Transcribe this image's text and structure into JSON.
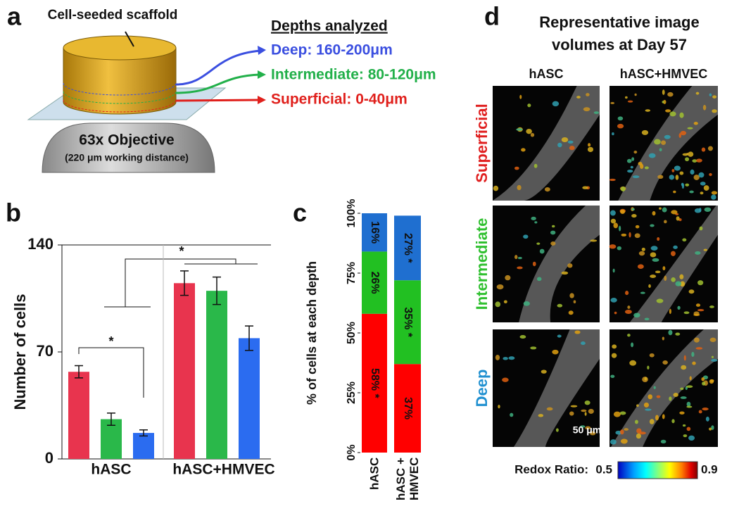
{
  "panel_a": {
    "label": "a",
    "scaffold_label": "Cell-seeded scaffold",
    "depths_title": "Depths analyzed",
    "depths": [
      {
        "text": "Deep: 160-200μm",
        "color": "#3b4fe0"
      },
      {
        "text": "Intermediate: 80-120μm",
        "color": "#22b04a"
      },
      {
        "text": "Superficial: 0-40μm",
        "color": "#e0201c"
      }
    ],
    "objective": "63x Objective",
    "objective_note": "(220 μm working distance)"
  },
  "chart_data": [
    {
      "type": "bar",
      "panel_label": "b",
      "ylabel": "Number of cells",
      "categories": [
        "hASC",
        "hASC+HMVEC"
      ],
      "series": [
        {
          "color": "#e8344e",
          "values": [
            57,
            115
          ],
          "errors": [
            4,
            8
          ]
        },
        {
          "color": "#2ab84a",
          "values": [
            26,
            110
          ],
          "errors": [
            4,
            9
          ]
        },
        {
          "color": "#2b6cf0",
          "values": [
            17,
            79
          ],
          "errors": [
            2,
            8
          ]
        }
      ],
      "ylim": [
        0,
        140
      ],
      "yticks": [
        0,
        70,
        140
      ],
      "annotations": [
        "*",
        "*"
      ]
    },
    {
      "type": "stacked_bar",
      "panel_label": "c",
      "ylabel": "% of cells at each depth",
      "categories": [
        "hASC",
        "hASC + HMVEC"
      ],
      "series": [
        {
          "color": "#ff0000",
          "values": [
            58,
            37
          ],
          "value_labels": [
            "58% *",
            "37%"
          ]
        },
        {
          "color": "#22c022",
          "values": [
            26,
            35
          ],
          "value_labels": [
            "26%",
            "35% *"
          ]
        },
        {
          "color": "#1f6fd0",
          "values": [
            16,
            27
          ],
          "value_labels": [
            "16%",
            "27% *"
          ]
        }
      ],
      "ylim": [
        0,
        100
      ],
      "yticks": [
        {
          "value": 0,
          "label": "0%"
        },
        {
          "value": 25,
          "label": "25%"
        },
        {
          "value": 50,
          "label": "50%"
        },
        {
          "value": 75,
          "label": "75%"
        },
        {
          "value": 100,
          "label": "100%"
        }
      ]
    }
  ],
  "panel_d": {
    "label": "d",
    "title": "Representative image volumes at Day 57",
    "columns": [
      "hASC",
      "hASC+HMVEC"
    ],
    "rows": [
      {
        "text": "Superficial",
        "color": "#e02020"
      },
      {
        "text": "Intermediate",
        "color": "#30c030"
      },
      {
        "text": "Deep",
        "color": "#2090d0"
      }
    ],
    "scale_bar": "50 μm",
    "colorbar": {
      "label": "Redox Ratio:",
      "min": 0.5,
      "max": 0.9
    }
  }
}
